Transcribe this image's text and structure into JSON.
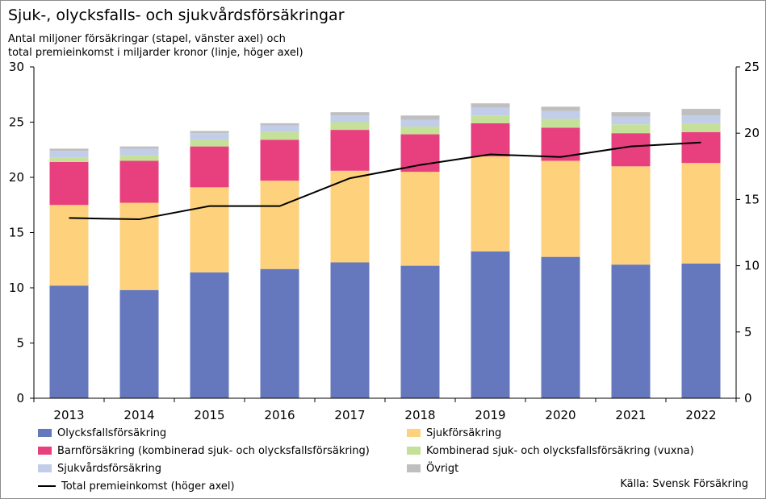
{
  "title": "Sjuk-, olycksfalls- och sjukvårdsförsäkringar",
  "subtitle_line1": "Antal miljoner försäkringar (stapel, vänster axel) och",
  "subtitle_line2": "total premieinkomst i miljarder kronor (linje, höger axel)",
  "source": "Källa: Svensk Försäkring",
  "chart_data": {
    "type": "bar",
    "stacked": true,
    "categories": [
      "2013",
      "2014",
      "2015",
      "2016",
      "2017",
      "2018",
      "2019",
      "2020",
      "2021",
      "2022"
    ],
    "ylim_left": [
      0,
      30
    ],
    "yticks_left": [
      0,
      5,
      10,
      15,
      20,
      25,
      30
    ],
    "ylim_right": [
      0,
      25
    ],
    "yticks_right": [
      0,
      5,
      10,
      15,
      20,
      25
    ],
    "series": [
      {
        "name": "Olycksfallsförsäkring",
        "color": "#6577bd",
        "values": [
          10.2,
          9.8,
          11.4,
          11.7,
          12.3,
          12.0,
          13.3,
          12.8,
          12.1,
          12.2
        ]
      },
      {
        "name": "Sjukförsäkring",
        "color": "#fed17c",
        "values": [
          7.3,
          7.9,
          7.7,
          8.0,
          8.3,
          8.5,
          8.6,
          8.7,
          8.9,
          9.1
        ]
      },
      {
        "name": "Barnförsäkring (kombinerad sjuk- och olycksfallsförsäkring)",
        "color": "#e8407f",
        "values": [
          3.9,
          3.8,
          3.7,
          3.7,
          3.7,
          3.4,
          3.0,
          3.0,
          3.0,
          2.8
        ]
      },
      {
        "name": "Kombinerad sjuk- och olycksfallsförsäkring (vuxna)",
        "color": "#c5e098",
        "values": [
          0.4,
          0.5,
          0.6,
          0.7,
          0.7,
          0.7,
          0.7,
          0.8,
          0.8,
          0.8
        ]
      },
      {
        "name": "Sjukvårdsförsäkring",
        "color": "#c2cde9",
        "values": [
          0.6,
          0.6,
          0.6,
          0.6,
          0.6,
          0.6,
          0.7,
          0.7,
          0.7,
          0.7
        ]
      },
      {
        "name": "Övrigt",
        "color": "#bfbfbf",
        "values": [
          0.2,
          0.2,
          0.2,
          0.2,
          0.3,
          0.4,
          0.4,
          0.4,
          0.4,
          0.6
        ]
      }
    ],
    "line": {
      "name": "Total premieinkomst (höger axel)",
      "color": "#000000",
      "axis": "right",
      "values": [
        13.6,
        13.5,
        14.5,
        14.5,
        16.6,
        17.6,
        18.4,
        18.2,
        19.0,
        19.3
      ]
    },
    "legend_position": "bottom"
  }
}
